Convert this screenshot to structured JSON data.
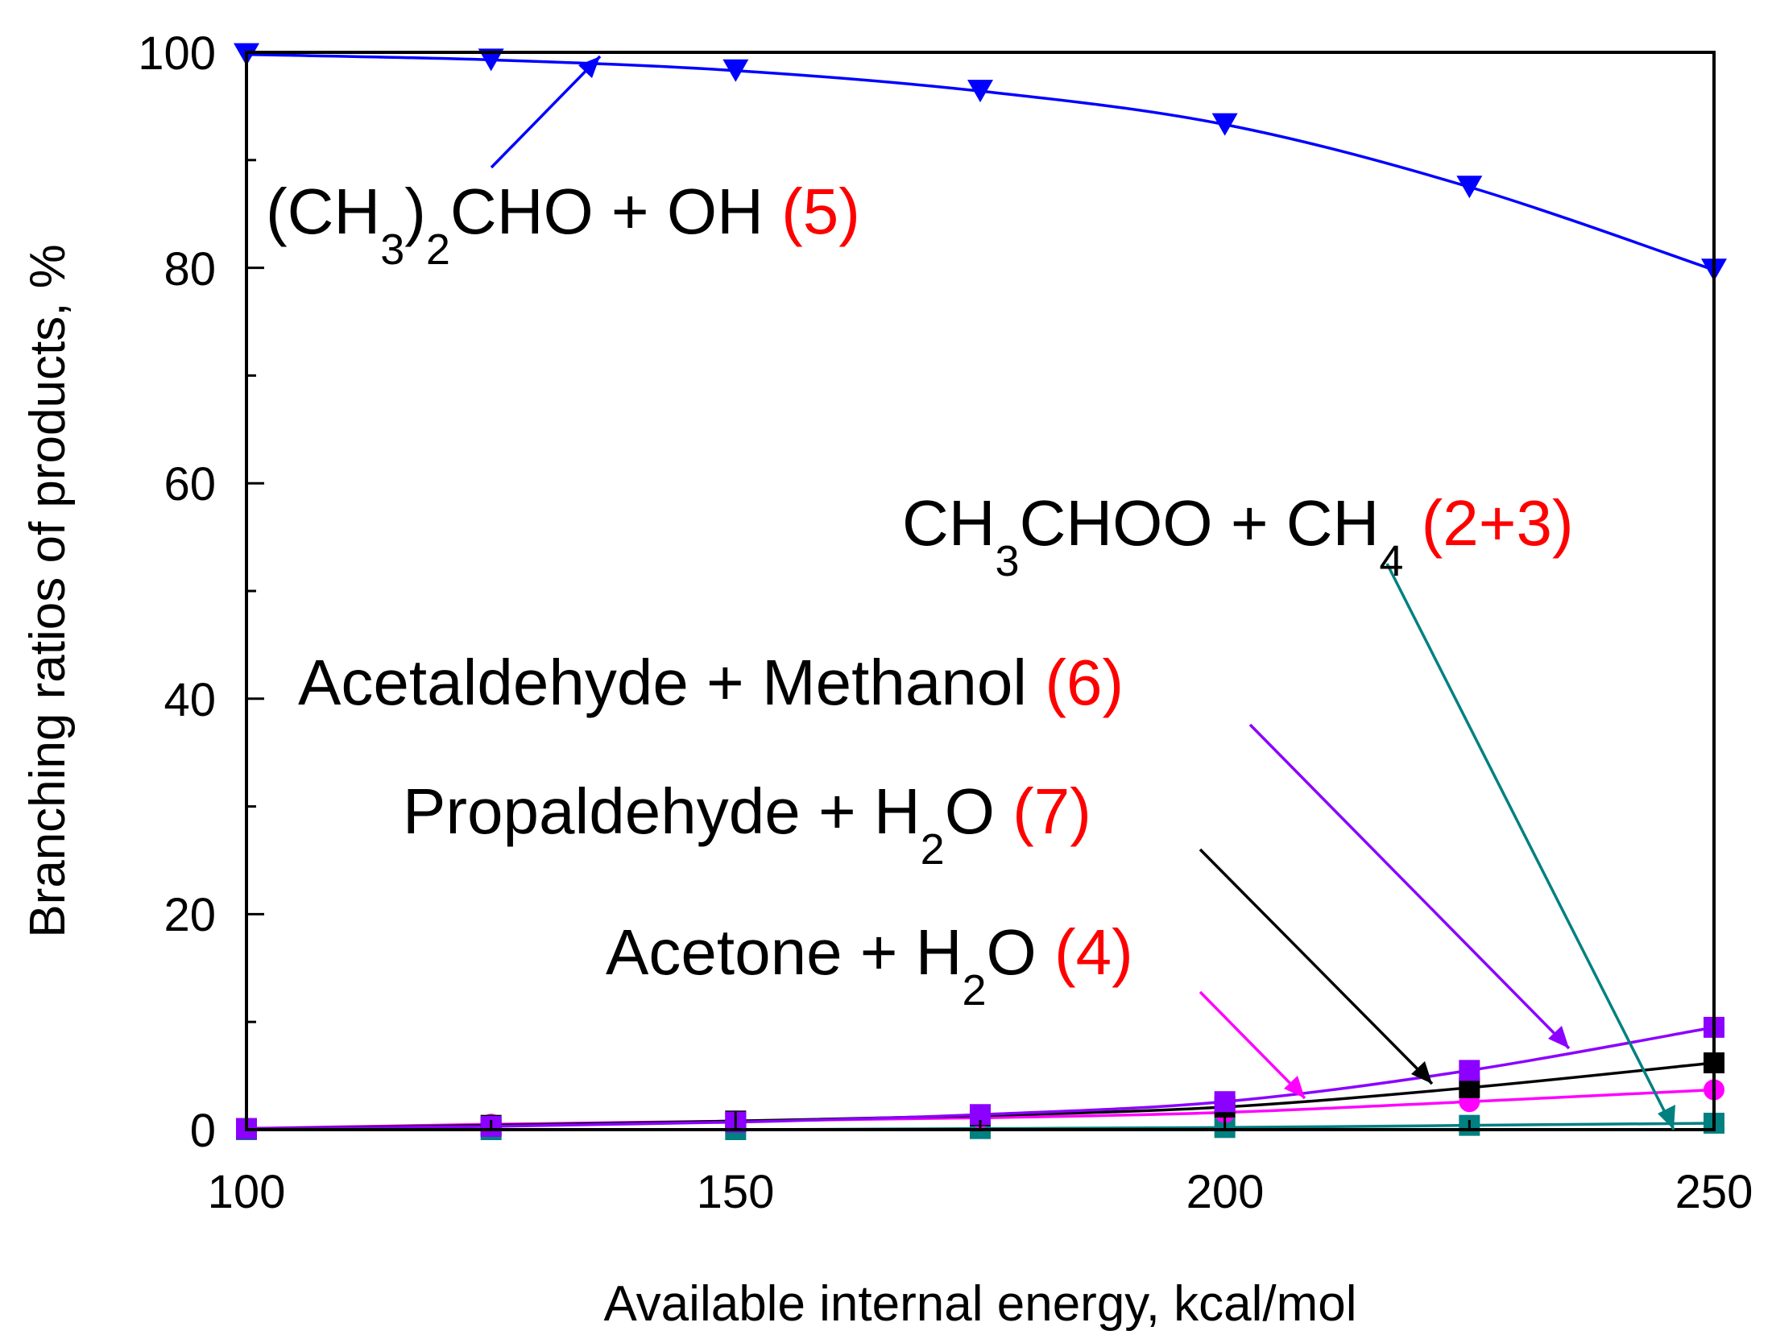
{
  "chart_data": {
    "type": "line",
    "title": "",
    "xlabel": "Available internal energy, kcal/mol",
    "ylabel": "Branching ratios of products,  %",
    "xlim": [
      100,
      250
    ],
    "ylim": [
      0,
      100
    ],
    "x_ticks": [
      "100",
      "150",
      "200",
      "250"
    ],
    "y_ticks": [
      "0",
      "20",
      "40",
      "60",
      "80",
      "100"
    ],
    "grid": false,
    "legend": "none",
    "x": [
      100,
      125,
      150,
      175,
      200,
      225,
      250
    ],
    "series": [
      {
        "id": "s5",
        "color": "#0000ff",
        "marker": "triangle-down",
        "values": [
          99.8,
          99.3,
          98.3,
          96.4,
          93.3,
          87.5,
          79.8
        ]
      },
      {
        "id": "s6",
        "color": "#8b00ff",
        "marker": "square",
        "values": [
          0.1,
          0.3,
          0.7,
          1.4,
          2.6,
          5.5,
          9.5
        ]
      },
      {
        "id": "s7",
        "color": "#000000",
        "marker": "square",
        "values": [
          0.1,
          0.4,
          0.8,
          1.3,
          2.1,
          3.9,
          6.2
        ]
      },
      {
        "id": "s4",
        "color": "#ff00ff",
        "marker": "circle",
        "values": [
          0.1,
          0.5,
          0.8,
          1.1,
          1.6,
          2.6,
          3.7
        ]
      },
      {
        "id": "s23",
        "color": "#008080",
        "marker": "square",
        "values": [
          0.0,
          0.0,
          0.0,
          0.1,
          0.2,
          0.4,
          0.6
        ]
      }
    ],
    "annotations": {
      "a5": {
        "p1": "(CH",
        "sub1": "3",
        "p2": ")",
        "sub2": "2",
        "p3": "CHO + OH ",
        "num": "(5)"
      },
      "a23": {
        "p1": "CH",
        "sub1": "3",
        "p2": "CHOO + CH",
        "sub2": "4",
        "p3": " ",
        "num": "(2+3)"
      },
      "a6": {
        "p1": "Acetaldehyde + Methanol ",
        "num": "(6)"
      },
      "a7": {
        "p1": "Propaldehyde + H",
        "sub1": "2",
        "p2": "O ",
        "num": "(7)"
      },
      "a4": {
        "p1": "Acetone + H",
        "sub1": "2",
        "p2": "O ",
        "num": "(4)"
      }
    }
  }
}
